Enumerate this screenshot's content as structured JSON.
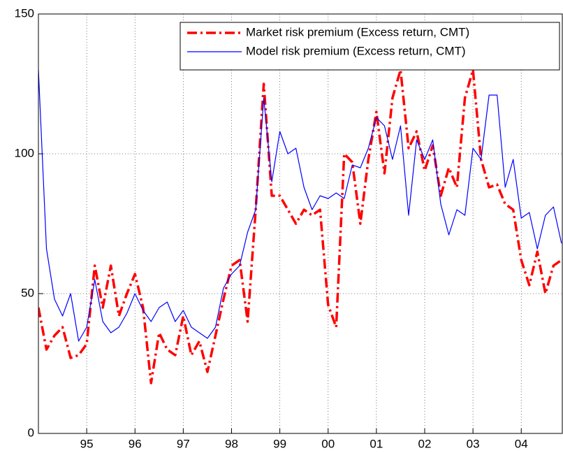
{
  "chart_data": {
    "type": "line",
    "x": [
      94.0,
      94.167,
      94.333,
      94.5,
      94.667,
      94.833,
      95.0,
      95.167,
      95.333,
      95.5,
      95.667,
      95.833,
      96.0,
      96.167,
      96.333,
      96.5,
      96.667,
      96.833,
      97.0,
      97.167,
      97.333,
      97.5,
      97.667,
      97.833,
      98.0,
      98.167,
      98.333,
      98.5,
      98.667,
      98.833,
      99.0,
      99.167,
      99.333,
      99.5,
      99.667,
      99.833,
      100.0,
      100.167,
      100.333,
      100.5,
      100.667,
      100.833,
      101.0,
      101.167,
      101.333,
      101.5,
      101.667,
      101.833,
      102.0,
      102.167,
      102.333,
      102.5,
      102.667,
      102.833,
      103.0,
      103.167,
      103.333,
      103.5,
      103.667,
      103.833,
      104.0,
      104.167,
      104.333,
      104.5,
      104.667,
      104.833
    ],
    "series": [
      {
        "name": "Market risk premium (Excess return, CMT)",
        "color": "#ff0000",
        "dash": "dashdot",
        "values": [
          45,
          30,
          35,
          38,
          27,
          28,
          32,
          60,
          45,
          60,
          42,
          50,
          57,
          45,
          18,
          36,
          30,
          28,
          42,
          28,
          33,
          22,
          35,
          48,
          60,
          62,
          40,
          80,
          125,
          85,
          85,
          80,
          75,
          80,
          78,
          80,
          46,
          38,
          100,
          97,
          75,
          98,
          115,
          93,
          120,
          130,
          102,
          108,
          94,
          103,
          85,
          95,
          88,
          120,
          130,
          98,
          88,
          89,
          82,
          80,
          62,
          53,
          65,
          50,
          60,
          62
        ]
      },
      {
        "name": "Model risk premium (Excess return, CMT)",
        "color": "#0000ff",
        "dash": "solid",
        "values": [
          130,
          66,
          48,
          42,
          50,
          33,
          38,
          55,
          40,
          36,
          38,
          43,
          50,
          44,
          40,
          45,
          47,
          40,
          44,
          38,
          36,
          34,
          38,
          52,
          57,
          60,
          72,
          80,
          120,
          90,
          108,
          100,
          102,
          88,
          80,
          85,
          84,
          86,
          84,
          96,
          95,
          102,
          113,
          110,
          98,
          110,
          78,
          105,
          98,
          105,
          82,
          71,
          80,
          78,
          102,
          98,
          121,
          121,
          88,
          98,
          77,
          79,
          66,
          78,
          81,
          68
        ]
      }
    ],
    "xlim": [
      94.0,
      104.85
    ],
    "xticks": [
      95,
      96,
      97,
      98,
      99,
      {
        "value": 100,
        "label": "00"
      },
      {
        "value": 101,
        "label": "01"
      },
      {
        "value": 102,
        "label": "02"
      },
      {
        "value": 103,
        "label": "03"
      },
      {
        "value": 104,
        "label": "04"
      }
    ],
    "ylim": [
      0,
      150
    ],
    "yticks": [
      0,
      50,
      100,
      150
    ],
    "grid": true,
    "legend": "upper right"
  }
}
